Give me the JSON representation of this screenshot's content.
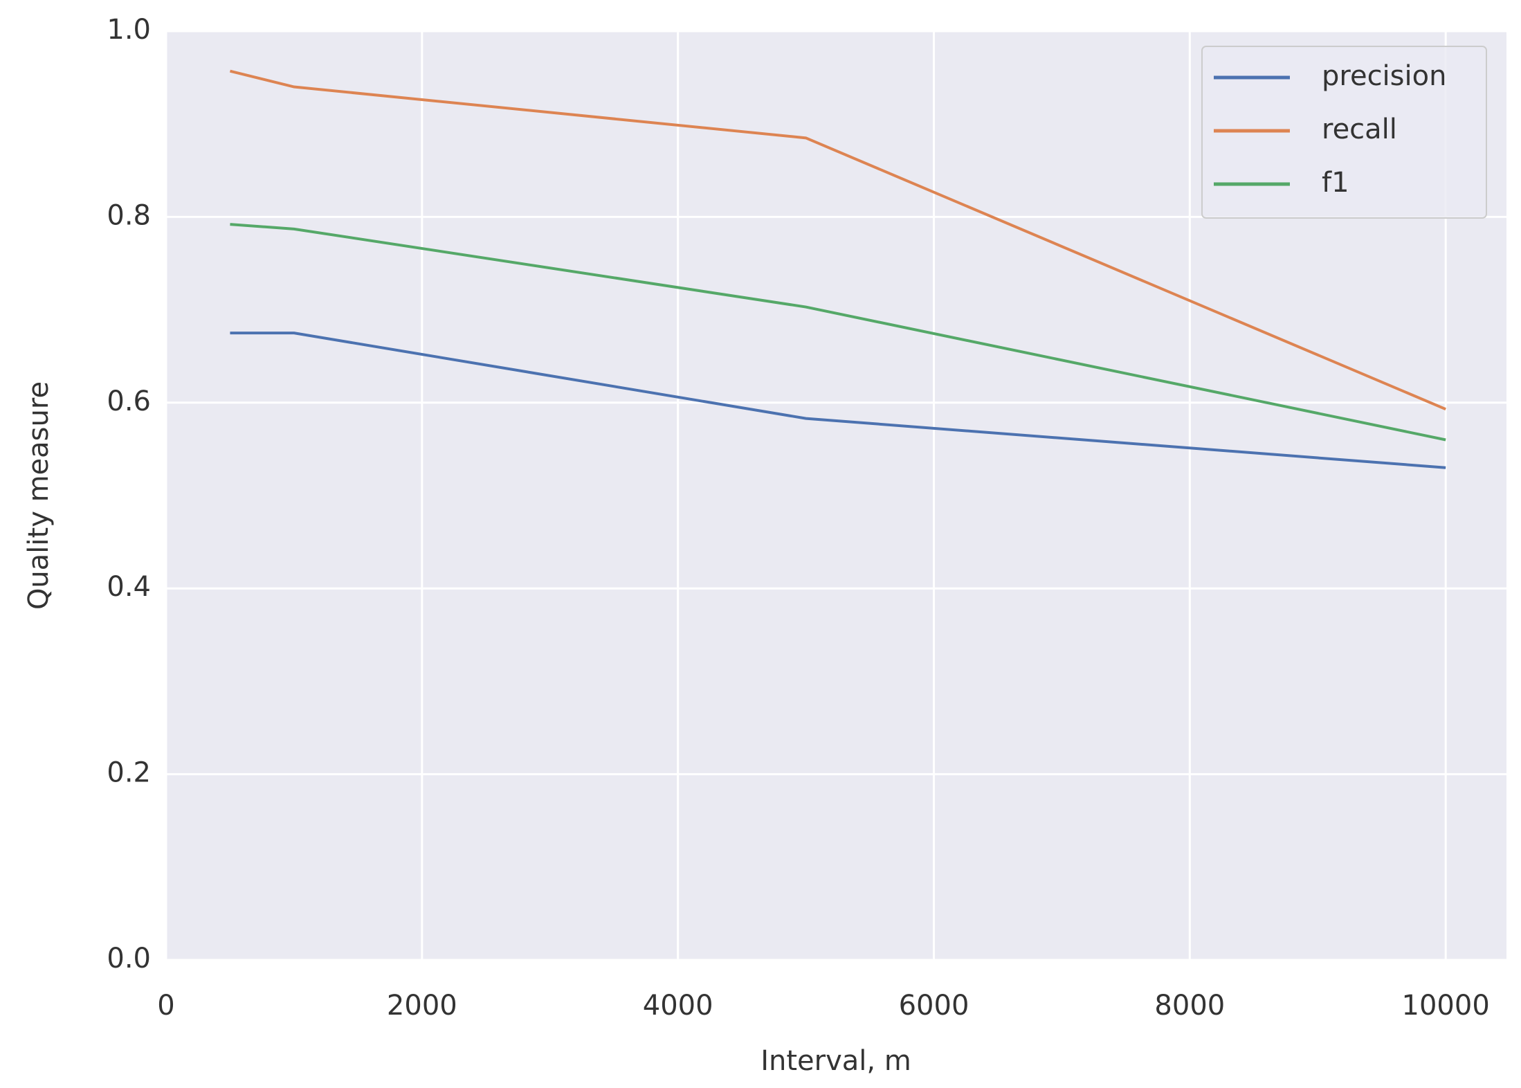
{
  "chart_data": {
    "type": "line",
    "x_label": "Interval, m",
    "y_label": "Quality measure",
    "x": [
      500,
      1000,
      5000,
      10000
    ],
    "series": [
      {
        "name": "precision",
        "color": "#4c72b0",
        "values": [
          0.675,
          0.675,
          0.583,
          0.53
        ]
      },
      {
        "name": "recall",
        "color": "#dd8452",
        "values": [
          0.957,
          0.94,
          0.885,
          0.593
        ]
      },
      {
        "name": "f1",
        "color": "#55a868",
        "values": [
          0.792,
          0.787,
          0.703,
          0.56
        ]
      }
    ],
    "xlim": [
      0,
      10475
    ],
    "xticks": [
      0,
      2000,
      4000,
      6000,
      8000,
      10000
    ],
    "ylim": [
      0,
      1.0
    ],
    "yticks": [
      {
        "value": 0,
        "label": "0.0"
      },
      0.2,
      0.4,
      0.6,
      0.8,
      {
        "value": 1,
        "label": "1.0"
      }
    ],
    "grid": true,
    "legend": "upper right",
    "background": "#eaeaf2"
  }
}
